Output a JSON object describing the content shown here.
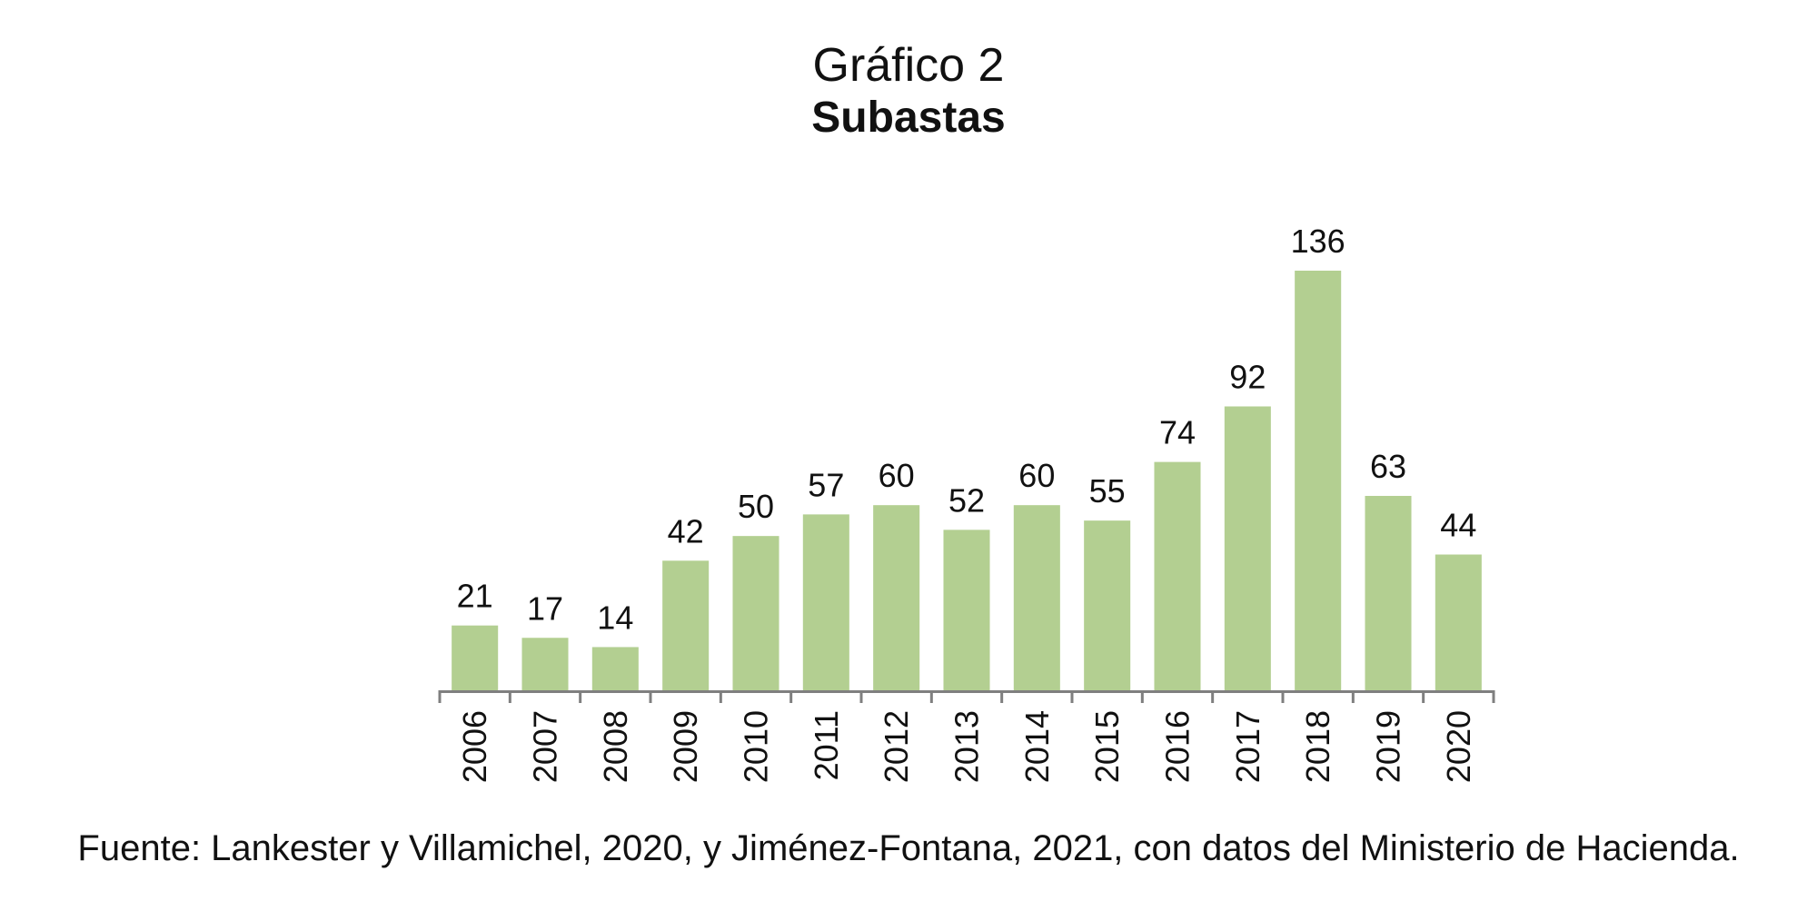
{
  "header": {
    "title": "Gráfico 2",
    "subtitle": "Subastas"
  },
  "chart_data": {
    "type": "bar",
    "title": "Gráfico 2",
    "subtitle": "Subastas",
    "xlabel": "",
    "ylabel": "",
    "categories": [
      "2006",
      "2007",
      "2008",
      "2009",
      "2010",
      "2011",
      "2012",
      "2013",
      "2014",
      "2015",
      "2016",
      "2017",
      "2018",
      "2019",
      "2020"
    ],
    "values": [
      21,
      17,
      14,
      42,
      50,
      57,
      60,
      52,
      60,
      55,
      74,
      92,
      136,
      63,
      44
    ],
    "ylim": [
      0,
      136
    ],
    "grid": false,
    "legend": "none",
    "data_labels": true,
    "bar_color": "#b3cf91",
    "axis_color": "#7f7f7f",
    "text_color": "#111111"
  },
  "footer": {
    "source": "Fuente: Lankester y Villamichel, 2020, y Jiménez-Fontana, 2021, con datos del Ministerio de Hacienda."
  }
}
